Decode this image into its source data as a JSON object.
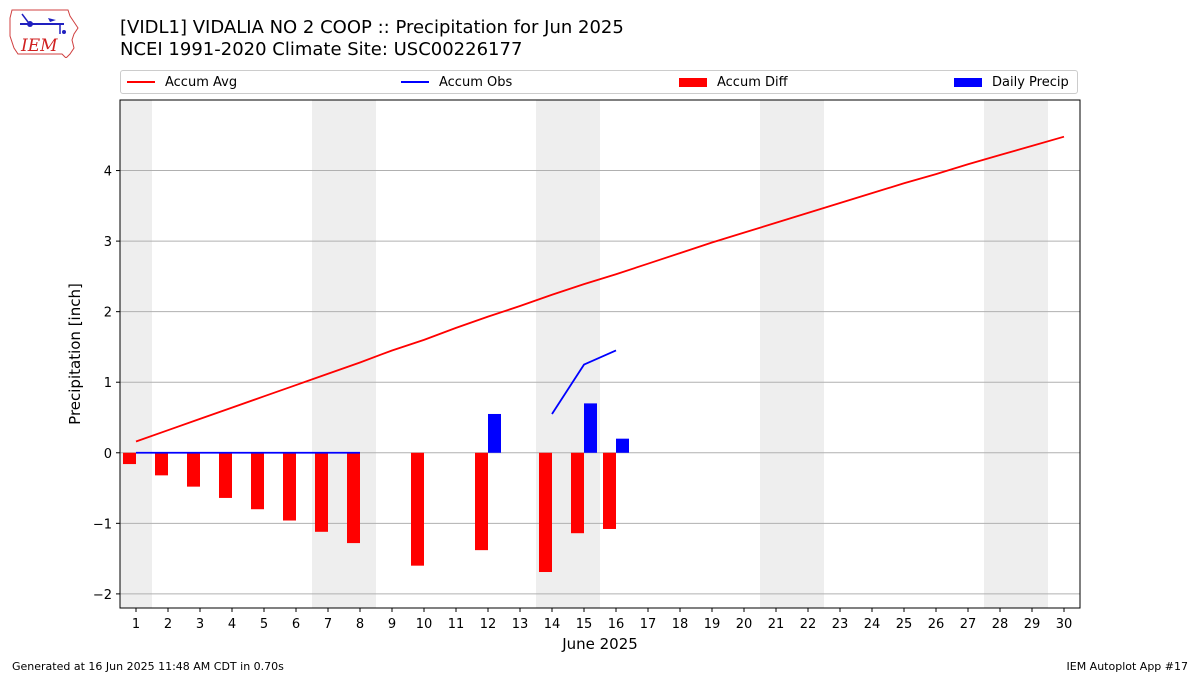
{
  "header": {
    "title_line1": "[VIDL1] VIDALIA NO 2 COOP :: Precipitation for Jun 2025",
    "title_line2": "NCEI 1991-2020 Climate Site: USC00226177",
    "logo_text": "IEM"
  },
  "footer": {
    "generated": "Generated at 16 Jun 2025 11:48 AM CDT in 0.70s",
    "app": "IEM Autoplot App #17"
  },
  "colors": {
    "accum_avg": "#ff0000",
    "accum_obs": "#0000ff",
    "accum_diff": "#ff0000",
    "daily_precip": "#0000ff",
    "weekend_band": "#eeeeee",
    "grid": "#b0b0b0"
  },
  "chart_data": {
    "type": "bar",
    "xlabel": "June 2025",
    "ylabel": "Precipitation [inch]",
    "ylim": [
      -2.2,
      5.0
    ],
    "xlim": [
      0.5,
      30.5
    ],
    "yticks": [
      -2,
      -1,
      0,
      1,
      2,
      3,
      4
    ],
    "days": [
      1,
      2,
      3,
      4,
      5,
      6,
      7,
      8,
      9,
      10,
      11,
      12,
      13,
      14,
      15,
      16,
      17,
      18,
      19,
      20,
      21,
      22,
      23,
      24,
      25,
      26,
      27,
      28,
      29,
      30
    ],
    "grid": "horizontal",
    "legend_placement": "top",
    "weekend_bands": [
      [
        0.5,
        1.5
      ],
      [
        6.5,
        8.5
      ],
      [
        13.5,
        15.5
      ],
      [
        20.5,
        22.5
      ],
      [
        27.5,
        29.5
      ]
    ],
    "legend": [
      {
        "label": "Accum Avg",
        "kind": "line",
        "color": "#ff0000"
      },
      {
        "label": "Accum Obs",
        "kind": "line",
        "color": "#0000ff"
      },
      {
        "label": "Accum Diff",
        "kind": "bar",
        "color": "#ff0000"
      },
      {
        "label": "Daily Precip",
        "kind": "bar",
        "color": "#0000ff"
      }
    ],
    "series": [
      {
        "name": "Accum Avg",
        "type": "line",
        "x": [
          1,
          2,
          3,
          4,
          5,
          6,
          7,
          8,
          9,
          10,
          11,
          12,
          13,
          14,
          15,
          16,
          17,
          18,
          19,
          20,
          21,
          22,
          23,
          24,
          25,
          26,
          27,
          28,
          29,
          30
        ],
        "values": [
          0.16,
          0.32,
          0.48,
          0.64,
          0.8,
          0.96,
          1.12,
          1.28,
          1.45,
          1.6,
          1.77,
          1.93,
          2.08,
          2.24,
          2.39,
          2.53,
          2.68,
          2.83,
          2.98,
          3.12,
          3.26,
          3.4,
          3.54,
          3.68,
          3.82,
          3.95,
          4.09,
          4.22,
          4.35,
          4.48
        ]
      },
      {
        "name": "Accum Obs",
        "type": "line",
        "segments": [
          {
            "x": [
              1,
              2,
              3,
              4,
              5,
              6,
              7,
              8
            ],
            "values": [
              0,
              0,
              0,
              0,
              0,
              0,
              0,
              0
            ]
          },
          {
            "x": [
              14,
              15,
              16
            ],
            "values": [
              0.55,
              1.25,
              1.45
            ]
          }
        ]
      },
      {
        "name": "Accum Diff",
        "type": "bar",
        "x": [
          1,
          2,
          3,
          4,
          5,
          6,
          7,
          8,
          10,
          12,
          14,
          15,
          16
        ],
        "values": [
          -0.16,
          -0.32,
          -0.48,
          -0.64,
          -0.8,
          -0.96,
          -1.12,
          -1.28,
          -1.6,
          -1.38,
          -1.69,
          -1.14,
          -1.08
        ]
      },
      {
        "name": "Daily Precip",
        "type": "bar",
        "x": [
          12,
          15,
          16
        ],
        "values": [
          0.55,
          0.7,
          0.2
        ]
      }
    ]
  }
}
